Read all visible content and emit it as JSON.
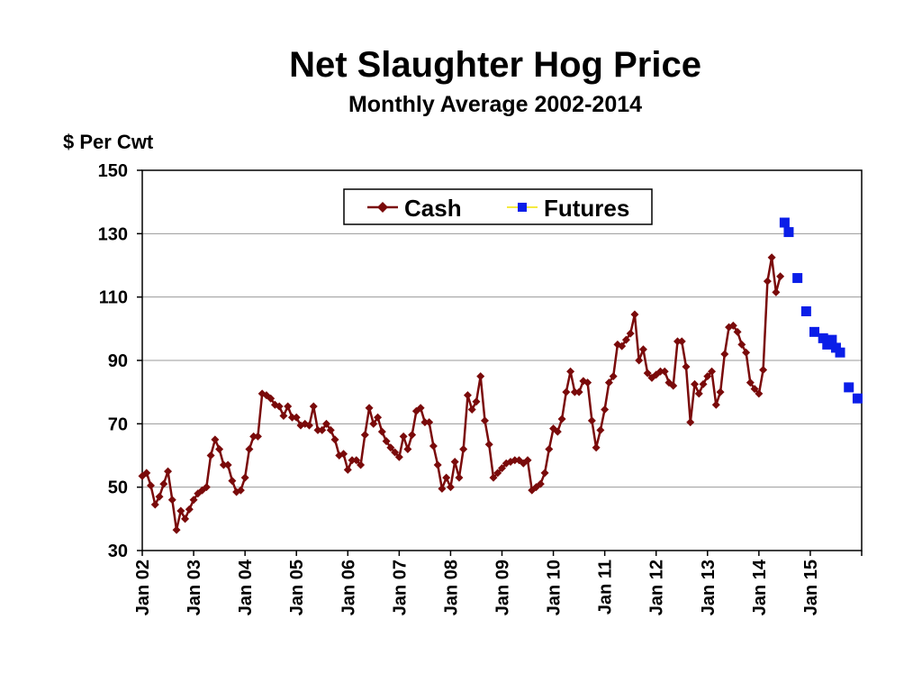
{
  "chart_data": {
    "type": "line",
    "title": "Net Slaughter Hog Price",
    "subtitle": "Monthly Average 2002-2014",
    "ylabel": "$ Per Cwt",
    "xlabel": "",
    "ylim": [
      30,
      150
    ],
    "yticks": [
      30,
      50,
      70,
      90,
      110,
      130,
      150
    ],
    "xlim": [
      2002.0,
      2016.0
    ],
    "xticks": [
      {
        "x": 2002,
        "label": "Jan 02"
      },
      {
        "x": 2003,
        "label": "Jan 03"
      },
      {
        "x": 2004,
        "label": "Jan 04"
      },
      {
        "x": 2005,
        "label": "Jan 05"
      },
      {
        "x": 2006,
        "label": "Jan 06"
      },
      {
        "x": 2007,
        "label": "Jan 07"
      },
      {
        "x": 2008,
        "label": "Jan 08"
      },
      {
        "x": 2009,
        "label": "Jan 09"
      },
      {
        "x": 2010,
        "label": "Jan 10"
      },
      {
        "x": 2011,
        "label": "Jan 11"
      },
      {
        "x": 2012,
        "label": "Jan 12"
      },
      {
        "x": 2013,
        "label": "Jan 13"
      },
      {
        "x": 2014,
        "label": "Jan 14"
      },
      {
        "x": 2015,
        "label": "Jan 15"
      }
    ],
    "grid": true,
    "legend_position": "top",
    "series": [
      {
        "name": "Cash",
        "color": "#7a0a0a",
        "marker": "diamond",
        "start": 2002.0,
        "step": 0.0833333,
        "values": [
          53.5,
          54.5,
          50.5,
          44.5,
          47,
          51,
          55,
          46,
          36.5,
          42.5,
          40,
          43,
          46,
          48,
          49,
          50,
          60,
          65,
          62,
          57,
          57,
          52,
          48.5,
          49,
          53,
          62,
          66,
          66,
          79.5,
          79,
          78,
          76,
          75.5,
          72.5,
          75.5,
          72,
          72,
          69.5,
          70,
          69.5,
          75.5,
          68,
          68,
          70,
          68,
          65,
          60,
          60.5,
          55.5,
          58.5,
          58.5,
          57,
          66.5,
          75,
          70,
          72,
          67.5,
          64.5,
          62.5,
          61,
          59.5,
          66,
          62,
          66.5,
          74,
          75,
          70.5,
          70.5,
          63,
          57,
          49.5,
          53,
          50,
          58,
          53,
          62,
          79,
          74.5,
          77,
          85,
          71,
          63.5,
          53,
          54.5,
          56,
          57.5,
          58,
          58.5,
          58.5,
          57.5,
          58.5,
          49,
          50,
          51,
          54.5,
          62,
          68.5,
          67.5,
          71.5,
          80,
          86.5,
          80,
          80,
          83.5,
          83,
          71,
          62.5,
          68,
          74.5,
          83,
          85,
          95,
          94.5,
          96.5,
          98.5,
          104.5,
          90,
          93.5,
          86,
          84.5,
          85.5,
          86.5,
          86.5,
          83,
          82,
          96,
          96,
          88,
          70.5,
          82.5,
          79.5,
          82.5,
          85,
          86.5,
          76,
          80,
          92,
          100.5,
          101,
          99,
          95,
          92.5,
          83,
          81,
          79.5,
          87,
          115,
          122.5,
          111.5,
          116.5
        ]
      },
      {
        "name": "Futures",
        "color": "#0a1ee8",
        "marker": "square",
        "points": [
          {
            "x": 2014.5,
            "y": 133.5
          },
          {
            "x": 2014.58,
            "y": 130.5
          },
          {
            "x": 2014.75,
            "y": 116
          },
          {
            "x": 2014.92,
            "y": 105.5
          },
          {
            "x": 2015.08,
            "y": 99
          },
          {
            "x": 2015.25,
            "y": 97
          },
          {
            "x": 2015.33,
            "y": 95
          },
          {
            "x": 2015.42,
            "y": 96.5
          },
          {
            "x": 2015.5,
            "y": 94
          },
          {
            "x": 2015.58,
            "y": 92.5
          },
          {
            "x": 2015.75,
            "y": 81.5
          },
          {
            "x": 2015.92,
            "y": 78
          }
        ]
      }
    ]
  }
}
